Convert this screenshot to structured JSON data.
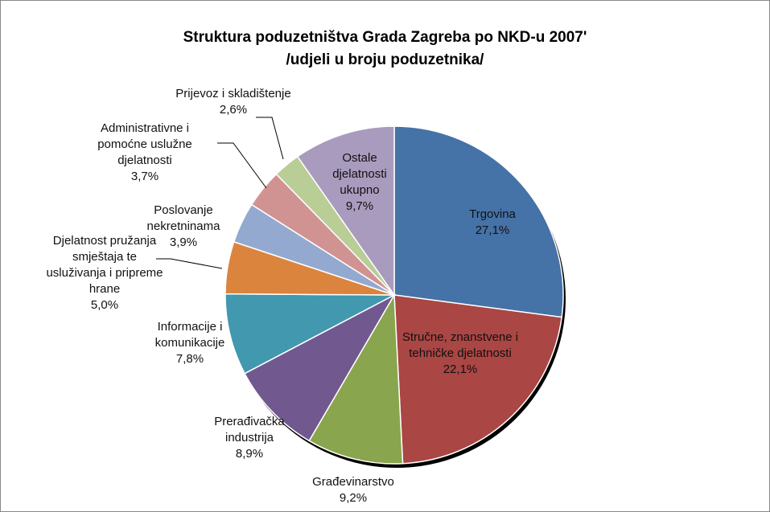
{
  "chart_data": {
    "type": "pie",
    "title": "Struktura poduzetništva Grada Zagreba po NKD-u 2007'",
    "subtitle": "/udjeli u broju poduzetnika/",
    "categories": [
      "Trgovina",
      "Stručne, znanstvene i tehničke djelatnosti",
      "Građevinarstvo",
      "Prerađivačka industrija",
      "Informacije i komunikacije",
      "Djelatnost pružanja smještaja te usluživanja i pripreme hrane",
      "Poslovanje nekretninama",
      "Administrativne i pomoćne uslužne djelatnosti",
      "Prijevoz i skladištenje",
      "Ostale djelatnosti ukupno"
    ],
    "values": [
      27.1,
      22.1,
      9.2,
      8.9,
      7.8,
      5.0,
      3.9,
      3.7,
      2.6,
      9.7
    ],
    "value_labels": [
      "27,1%",
      "22,1%",
      "9,2%",
      "8,9%",
      "7,8%",
      "5,0%",
      "3,9%",
      "3,7%",
      "2,6%",
      "9,7%"
    ],
    "colors": [
      "#4572a7",
      "#aa4643",
      "#89a54e",
      "#71588f",
      "#4198af",
      "#db843d",
      "#93a9cf",
      "#d19392",
      "#b9cd96",
      "#a99bbd"
    ]
  }
}
